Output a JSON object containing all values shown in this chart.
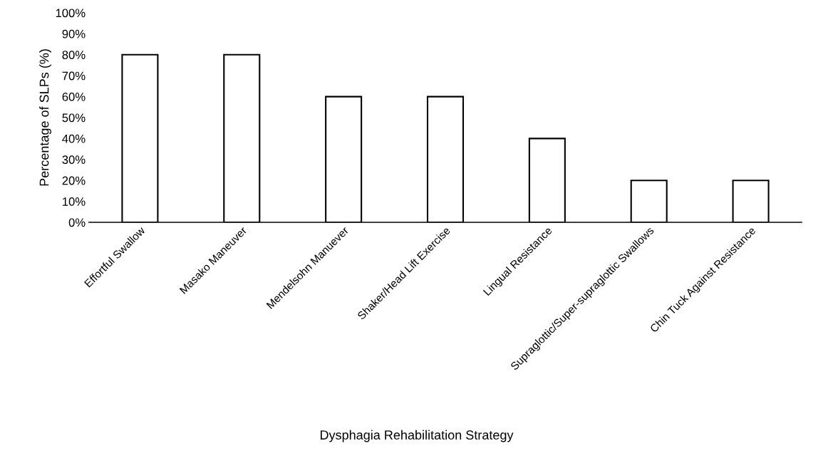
{
  "chart_data": {
    "type": "bar",
    "xlabel": "Dysphagia Rehabilitation Strategy",
    "ylabel": "Percentage of SLPs (%)",
    "categories": [
      "Effortful Swallow",
      "Masako Maneuver",
      "Mendelsohn Manuever",
      "Shaker/Head Lift Exercise",
      "Lingual Resistance",
      "Supraglottic/Super-supraglottic Swallows",
      "Chin Tuck Against Resistance"
    ],
    "values": [
      80,
      80,
      60,
      60,
      40,
      20,
      20
    ],
    "color": "#ffffff",
    "ylim": [
      0,
      100
    ],
    "yticks": [
      {
        "value": 0,
        "label": "0%"
      },
      {
        "value": 10,
        "label": "10%"
      },
      {
        "value": 20,
        "label": "20%"
      },
      {
        "value": 30,
        "label": "30%"
      },
      {
        "value": 40,
        "label": "40%"
      },
      {
        "value": 50,
        "label": "50%"
      },
      {
        "value": 60,
        "label": "60%"
      },
      {
        "value": 70,
        "label": "70%"
      },
      {
        "value": 80,
        "label": "80%"
      },
      {
        "value": 90,
        "label": "90%"
      },
      {
        "value": 100,
        "label": "100%"
      }
    ],
    "grid": false,
    "legend": false
  }
}
